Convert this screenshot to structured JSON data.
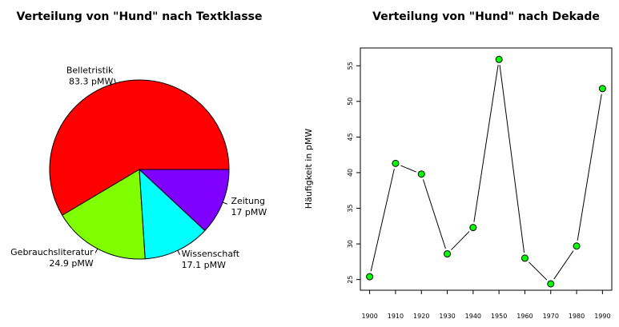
{
  "chart_data": [
    {
      "type": "pie",
      "title": "Verteilung von \"Hund\" nach Textklasse",
      "slices": [
        {
          "label": "Belletristik",
          "value_label": "83.3 pMW",
          "value": 83.3,
          "color": "#FF0000"
        },
        {
          "label": "Gebrauchsliteratur",
          "value_label": "24.9 pMW",
          "value": 24.9,
          "color": "#80FF00"
        },
        {
          "label": "Wissenschaft",
          "value_label": "17.1 pMW",
          "value": 17.1,
          "color": "#00FFFF"
        },
        {
          "label": "Zeitung",
          "value_label": "17 pMW",
          "value": 17,
          "color": "#8000FF"
        }
      ]
    },
    {
      "type": "line",
      "title": "Verteilung von \"Hund\" nach Dekade",
      "ylabel": "Häufigkeit in pMW",
      "xlabel": "",
      "x": [
        1900,
        1910,
        1920,
        1930,
        1940,
        1950,
        1960,
        1970,
        1980,
        1990
      ],
      "x_tick_labels": [
        "1900",
        "1910",
        "1920",
        "1930",
        "1940",
        "1950",
        "1960",
        "1970",
        "1980",
        "1990"
      ],
      "values": [
        25.4,
        41.3,
        39.8,
        28.6,
        32.3,
        55.9,
        28.0,
        24.4,
        29.7,
        51.8
      ],
      "yticks": [
        25,
        30,
        35,
        40,
        45,
        50,
        55
      ],
      "ylim": [
        23.5,
        57.5
      ],
      "marker_color": "#00FF00",
      "line_color": "#000000"
    }
  ]
}
